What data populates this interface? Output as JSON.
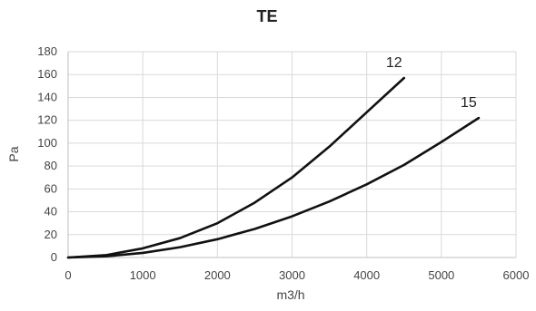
{
  "chart_data": {
    "type": "line",
    "title": "TE",
    "xlabel": "m3/h",
    "ylabel": "Pa",
    "xlim": [
      0,
      6000
    ],
    "ylim": [
      0,
      180
    ],
    "x_ticks": [
      0,
      1000,
      2000,
      3000,
      4000,
      5000,
      6000
    ],
    "y_ticks": [
      0,
      20,
      40,
      60,
      80,
      100,
      120,
      140,
      160,
      180
    ],
    "grid": true,
    "legend": "none",
    "series": [
      {
        "name": "12",
        "x": [
          0,
          500,
          1000,
          1500,
          2000,
          2500,
          3000,
          3500,
          4000,
          4500
        ],
        "y": [
          0,
          2,
          8,
          17,
          30,
          48,
          70,
          97,
          127,
          157
        ]
      },
      {
        "name": "15",
        "x": [
          0,
          500,
          1000,
          1500,
          2000,
          2500,
          3000,
          3500,
          4000,
          4500,
          5000,
          5500
        ],
        "y": [
          0,
          1,
          4,
          9,
          16,
          25,
          36,
          49,
          64,
          81,
          101,
          122
        ]
      }
    ],
    "colors": {
      "series": "#111111",
      "grid": "#d9d9d9",
      "axis": "#bfbfbf",
      "text": "#444444"
    }
  }
}
